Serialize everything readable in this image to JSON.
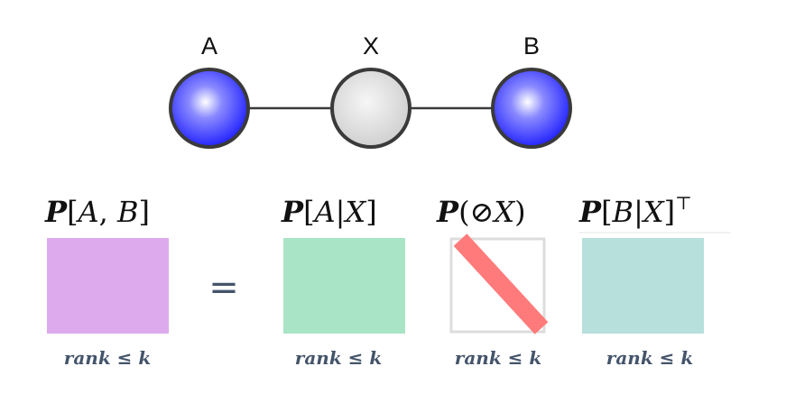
{
  "graph": {
    "nodes": [
      {
        "id": "A",
        "label": "A",
        "color": "#2b2bff"
      },
      {
        "id": "X",
        "label": "X",
        "color": "#d9d9d9"
      },
      {
        "id": "B",
        "label": "B",
        "color": "#2b2bff"
      }
    ],
    "edges": [
      {
        "from": "A",
        "to": "X"
      },
      {
        "from": "X",
        "to": "B"
      }
    ]
  },
  "equation": {
    "lhs": {
      "cal": "P",
      "open": "[",
      "var1": "A",
      "sep": ", ",
      "var2": "B",
      "close": "]",
      "color": "#ddaaee",
      "rank_label": "rank ≤ k"
    },
    "equals_sign": "=",
    "factor1": {
      "cal": "P",
      "open": "[",
      "var1": "A",
      "sep": "|",
      "var2": "X",
      "close": "]",
      "color": "#aae4c6",
      "rank_label": "rank ≤ k"
    },
    "factor2": {
      "cal": "P",
      "open": "(",
      "sym": "⊘",
      "var1": "X",
      "close": ")",
      "border_color": "#dddddd",
      "diag_color": "#ff7b7b",
      "rank_label": "rank ≤ k"
    },
    "factor3": {
      "cal": "P",
      "open": "[",
      "var1": "B",
      "sep": "|",
      "var2": "X",
      "close": "]",
      "sup": "⊤",
      "color": "#b7dfdb",
      "rank_label": "rank ≤ k"
    }
  }
}
